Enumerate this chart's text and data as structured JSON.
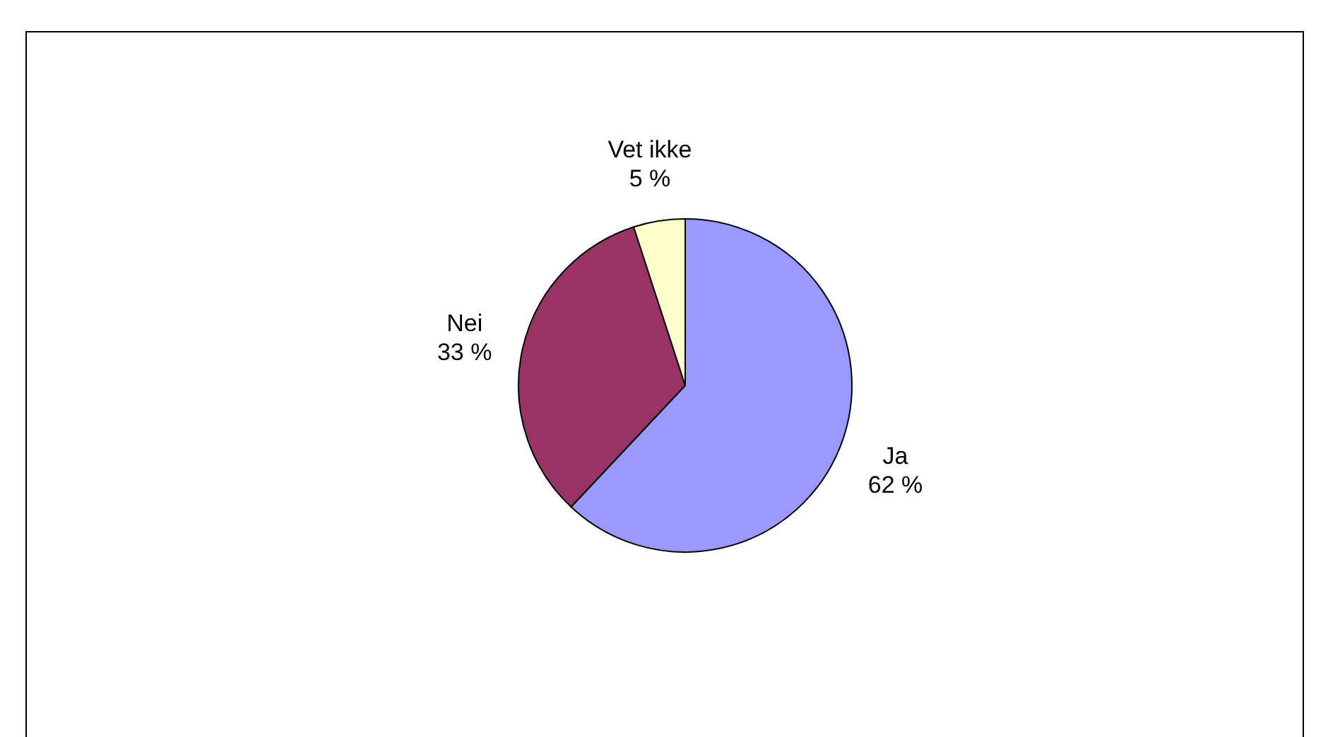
{
  "chart_data": {
    "type": "pie",
    "categories": [
      "Ja",
      "Nei",
      "Vet ikke"
    ],
    "values": [
      62,
      33,
      5
    ],
    "colors": [
      "#9999ff",
      "#993366",
      "#ffffcc"
    ],
    "value_labels": [
      "62 %",
      "33 %",
      "5 %"
    ],
    "legend": false
  }
}
